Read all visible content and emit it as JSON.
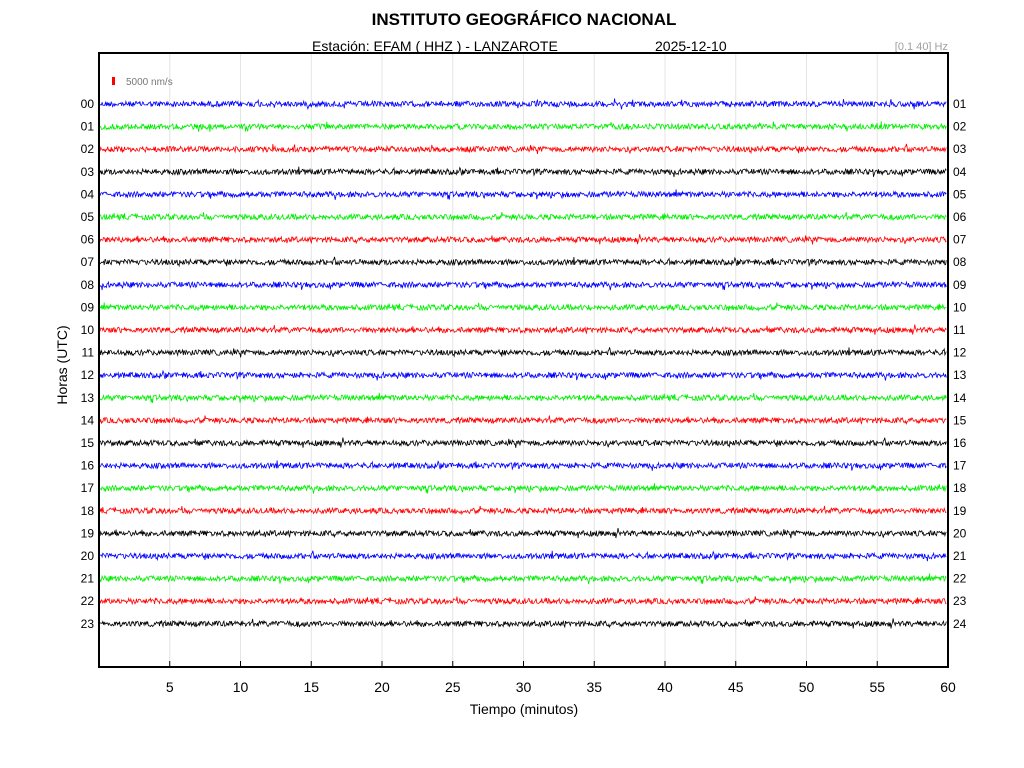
{
  "header": {
    "title": "INSTITUTO GEOGRÁFICO NACIONAL",
    "station": "Estación:  EFAM ( HHZ ) - LANZAROTE",
    "date": "2025-12-10",
    "filter": "[0.1 40] Hz"
  },
  "scale_label": "5000 nm/s",
  "chart_data": {
    "type": "line",
    "subtype": "helicorder",
    "xlabel": "Tiempo (minutos)",
    "ylabel": "Horas (UTC)",
    "xlim": [
      0,
      60
    ],
    "x_ticks": [
      5,
      10,
      15,
      20,
      25,
      30,
      35,
      40,
      45,
      50,
      55,
      60
    ],
    "grid": "vertical",
    "left_hour_labels": [
      "00",
      "01",
      "02",
      "03",
      "04",
      "05",
      "06",
      "07",
      "08",
      "09",
      "10",
      "11",
      "12",
      "13",
      "14",
      "15",
      "16",
      "17",
      "18",
      "19",
      "20",
      "21",
      "22",
      "23"
    ],
    "right_hour_labels": [
      "01",
      "02",
      "03",
      "04",
      "05",
      "06",
      "07",
      "08",
      "09",
      "10",
      "11",
      "12",
      "13",
      "14",
      "15",
      "16",
      "17",
      "18",
      "19",
      "20",
      "21",
      "22",
      "23",
      "24"
    ],
    "trace_colors": [
      "#0000ff",
      "#00ee00",
      "#ff0000",
      "#000000"
    ],
    "scale_bar_color": "#ff0000"
  }
}
